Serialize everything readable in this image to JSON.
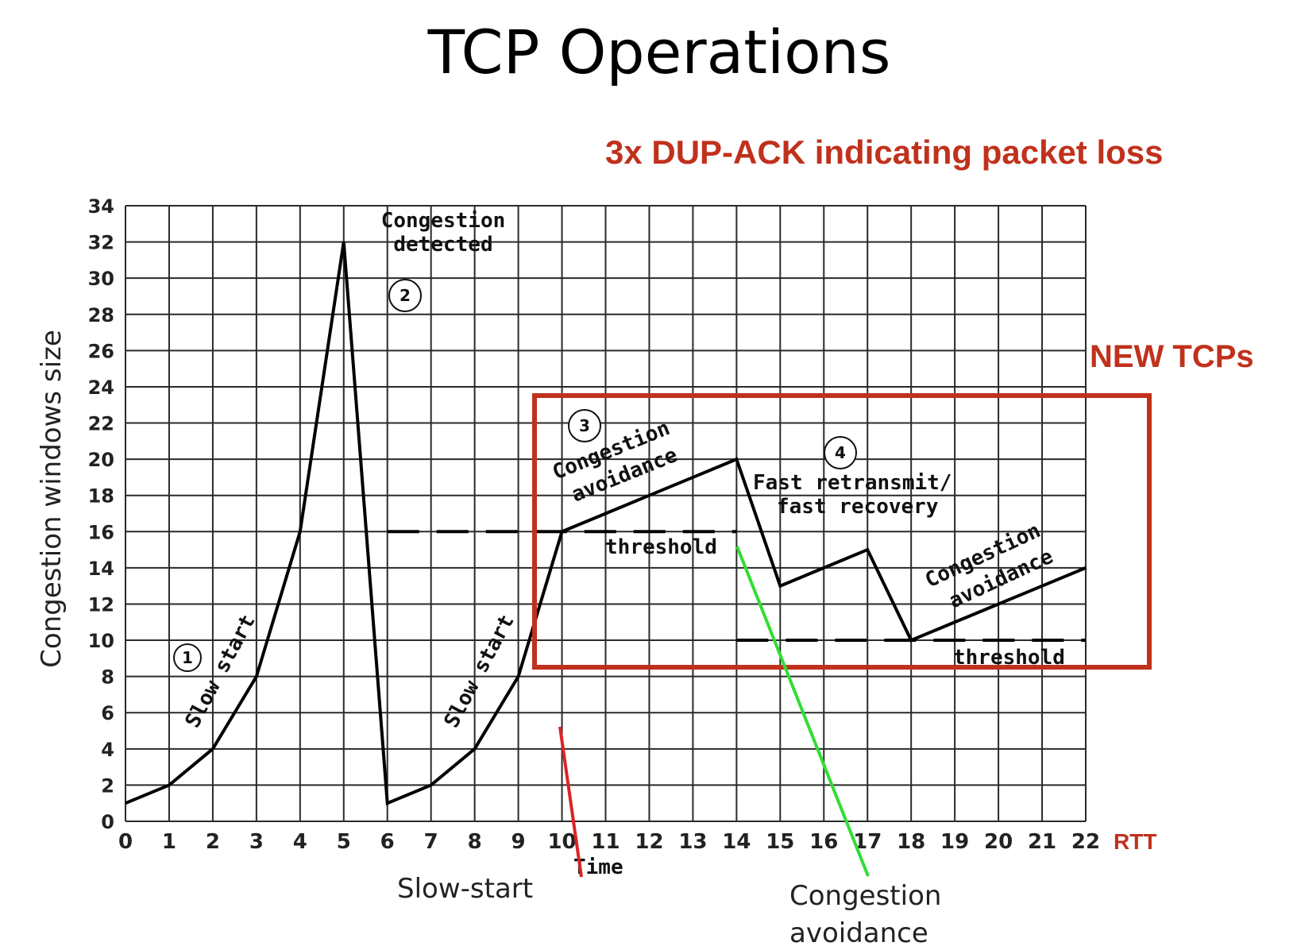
{
  "slide": {
    "title": "TCP Operations",
    "dup_ack_note": "3x DUP-ACK indicating packet loss",
    "new_tcps": "NEW TCPs",
    "rtt_label": "RTT",
    "slow_start_label": "Slow-start",
    "congestion_avoidance_label_line1": "Congestion",
    "congestion_avoidance_label_line2": "avoidance"
  },
  "colors": {
    "accent_red": "#c0311c",
    "green_pointer": "#33dd33",
    "red_pointer": "#dd2222",
    "line": "#000000"
  },
  "chart_data": {
    "type": "line",
    "xlabel": "Time",
    "ylabel": "Congestion windows size",
    "xlim": [
      0,
      22
    ],
    "ylim": [
      0,
      34
    ],
    "x_ticks": [
      0,
      1,
      2,
      3,
      4,
      5,
      6,
      7,
      8,
      9,
      10,
      11,
      12,
      13,
      14,
      15,
      16,
      17,
      18,
      19,
      20,
      21,
      22
    ],
    "y_ticks": [
      0,
      2,
      4,
      6,
      8,
      10,
      12,
      14,
      16,
      18,
      20,
      22,
      24,
      26,
      28,
      30,
      32,
      34
    ],
    "grid": true,
    "series": [
      {
        "x": [
          0,
          1,
          2,
          3,
          4,
          5,
          6,
          7,
          8,
          9,
          10,
          11,
          12,
          13,
          14,
          15,
          16,
          17,
          18,
          19,
          20,
          21,
          22
        ],
        "y": [
          1,
          2,
          4,
          8,
          16,
          32,
          1,
          2,
          4,
          8,
          16,
          17,
          18,
          19,
          20,
          13,
          14,
          15,
          10,
          11,
          12,
          13,
          14
        ]
      }
    ],
    "thresholds": [
      {
        "y": 16,
        "x_range": [
          6,
          14
        ],
        "label": "threshold"
      },
      {
        "y": 10,
        "x_range": [
          14,
          22
        ],
        "label": "threshold"
      }
    ],
    "annotations": {
      "congestion_detected": "Congestion detected",
      "slow_start": "Slow start",
      "congestion_avoidance": "Congestion avoidance",
      "fast_retransmit": "Fast retransmit/ fast recovery",
      "markers": [
        "1",
        "2",
        "3",
        "4"
      ]
    }
  }
}
